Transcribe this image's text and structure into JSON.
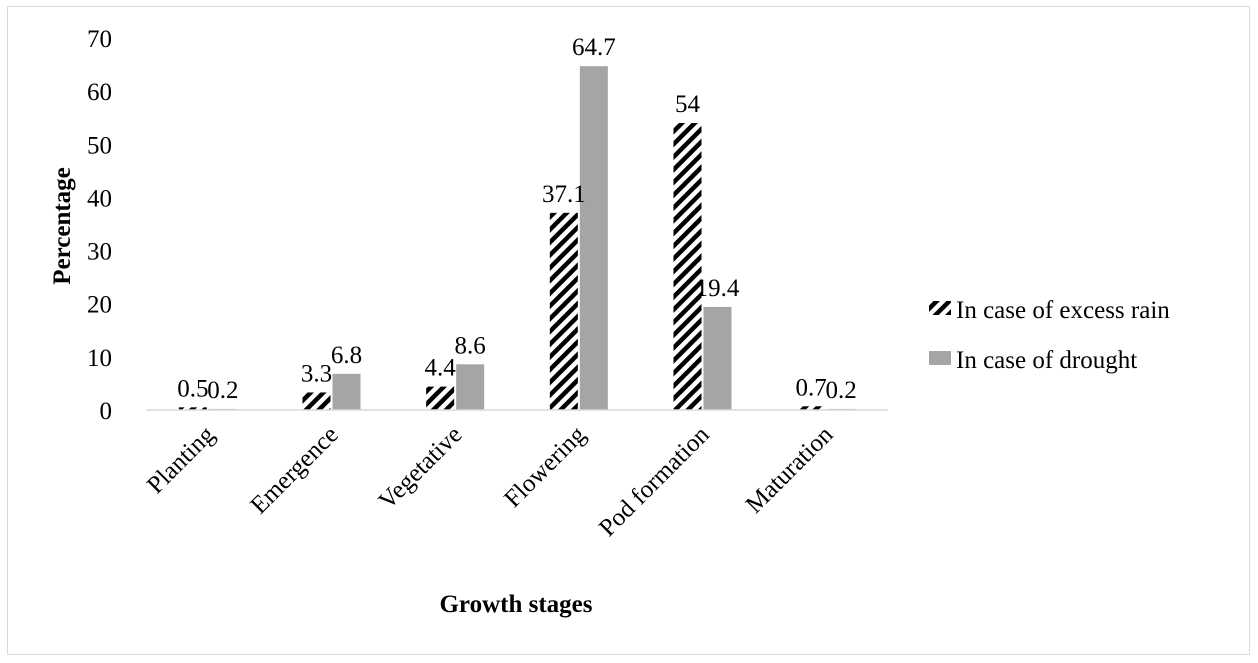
{
  "chart_data": {
    "type": "bar",
    "xlabel": "Growth stages",
    "ylabel": "Percentage",
    "ylim": [
      0,
      70
    ],
    "yticks": [
      "0",
      "10",
      "20",
      "30",
      "40",
      "50",
      "60",
      "70"
    ],
    "grid": false,
    "legend_position": "right",
    "categories": [
      "Planting",
      "Emergence",
      "Vegetative",
      "Flowering",
      "Pod formation",
      "Maturation"
    ],
    "series": [
      {
        "name": "In case of excess rain",
        "values": [
          0.5,
          3.3,
          4.4,
          37.1,
          54,
          0.7
        ],
        "labels": [
          "0.5",
          "3.3",
          "4.4",
          "37.1",
          "54",
          "0.7"
        ],
        "fill": "diagonal-hatch",
        "color": "#000000"
      },
      {
        "name": "In case of drought",
        "values": [
          0.2,
          6.8,
          8.6,
          64.7,
          19.4,
          0.2
        ],
        "labels": [
          "0.2",
          "6.8",
          "8.6",
          "64.7",
          "19.4",
          "0.2"
        ],
        "fill": "solid",
        "color": "#a5a5a5"
      }
    ]
  }
}
